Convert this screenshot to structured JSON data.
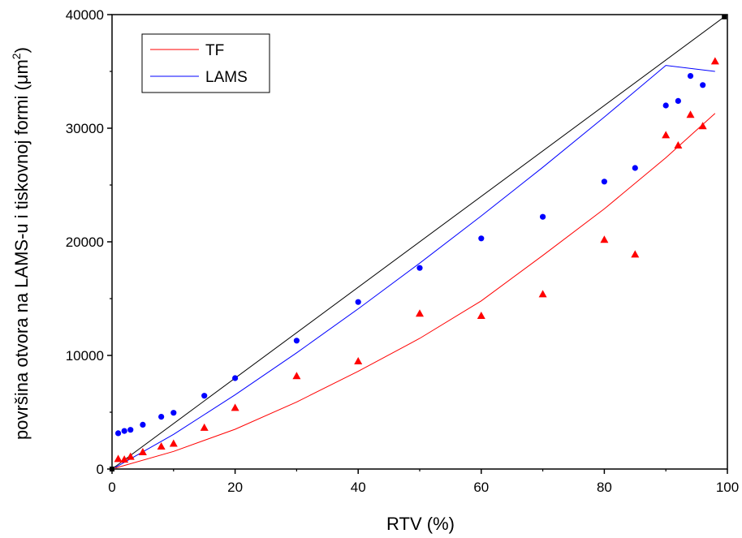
{
  "chart_data": {
    "type": "scatter",
    "xlabel": "RTV (%)",
    "ylabel_prefix": "površina otvora na LAMS-u i tiskovnoj formi (",
    "ylabel_unit_base": "μm",
    "ylabel_unit_exp": "2",
    "ylabel_suffix": ")",
    "xlim": [
      0,
      100
    ],
    "ylim": [
      0,
      40000
    ],
    "x_ticks": [
      0,
      20,
      40,
      60,
      80,
      100
    ],
    "x_minor_ticks": [
      10,
      30,
      50,
      70,
      90
    ],
    "y_ticks": [
      0,
      10000,
      20000,
      30000,
      40000
    ],
    "y_minor_ticks": [
      5000,
      15000,
      25000,
      35000
    ],
    "grid": false,
    "legend_position": "top-left",
    "legend": [
      {
        "label": "TF",
        "color": "#ff0000"
      },
      {
        "label": "LAMS",
        "color": "#0000ff"
      }
    ],
    "reference_line": {
      "color": "#000000",
      "x": [
        0,
        99.5
      ],
      "y": [
        0,
        39800
      ]
    },
    "series": [
      {
        "name": "LAMS",
        "color": "#0000ff",
        "marker": "circle",
        "points": [
          [
            1,
            3150
          ],
          [
            2,
            3350
          ],
          [
            3,
            3450
          ],
          [
            5,
            3900
          ],
          [
            8,
            4600
          ],
          [
            10,
            4950
          ],
          [
            15,
            6450
          ],
          [
            20,
            8000
          ],
          [
            30,
            11300
          ],
          [
            40,
            14700
          ],
          [
            50,
            17700
          ],
          [
            60,
            20300
          ],
          [
            70,
            22200
          ],
          [
            80,
            25300
          ],
          [
            85,
            26500
          ],
          [
            90,
            32000
          ],
          [
            92,
            32400
          ],
          [
            94,
            34600
          ],
          [
            96,
            33800
          ]
        ],
        "fit": [
          [
            0.5,
            130
          ],
          [
            10,
            3050
          ],
          [
            20,
            6530
          ],
          [
            30,
            10230
          ],
          [
            40,
            14100
          ],
          [
            50,
            18120
          ],
          [
            60,
            22280
          ],
          [
            70,
            26560
          ],
          [
            80,
            30980
          ],
          [
            90,
            35530
          ],
          [
            98,
            35000
          ]
        ]
      },
      {
        "name": "TF",
        "color": "#ff0000",
        "marker": "triangle",
        "points": [
          [
            1,
            900
          ],
          [
            2,
            850
          ],
          [
            3,
            1100
          ],
          [
            5,
            1500
          ],
          [
            8,
            2000
          ],
          [
            10,
            2250
          ],
          [
            15,
            3650
          ],
          [
            20,
            5400
          ],
          [
            30,
            8200
          ],
          [
            40,
            9500
          ],
          [
            50,
            13700
          ],
          [
            60,
            13500
          ],
          [
            70,
            15400
          ],
          [
            80,
            20200
          ],
          [
            85,
            18900
          ],
          [
            90,
            29400
          ],
          [
            92,
            28500
          ],
          [
            94,
            31200
          ],
          [
            96,
            30200
          ],
          [
            98,
            35900
          ]
        ],
        "fit": [
          [
            0.5,
            80
          ],
          [
            10,
            1550
          ],
          [
            20,
            3500
          ],
          [
            30,
            5900
          ],
          [
            40,
            8600
          ],
          [
            50,
            11500
          ],
          [
            60,
            14800
          ],
          [
            70,
            18800
          ],
          [
            80,
            22900
          ],
          [
            90,
            27400
          ],
          [
            98,
            31300
          ]
        ]
      }
    ]
  }
}
